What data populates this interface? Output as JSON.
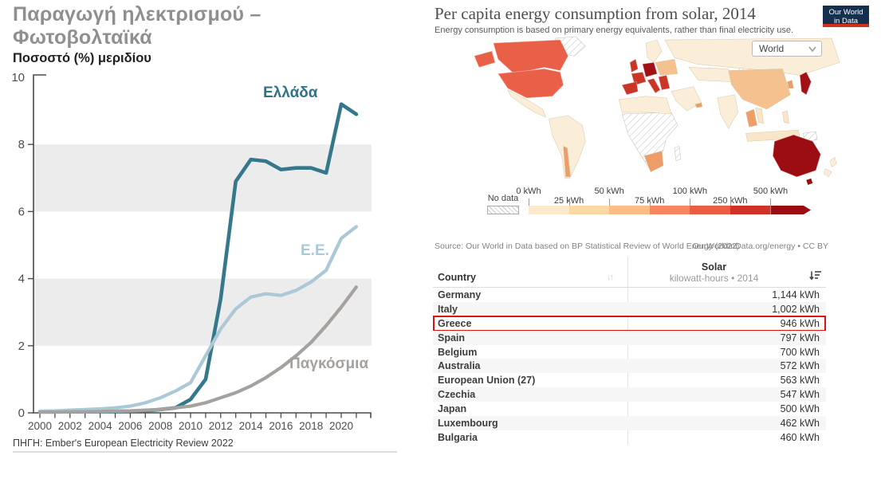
{
  "left_chart": {
    "title_line1": "Παραγωγή ηλεκτρισμού –",
    "title_line2": "Φωτοβολταϊκά",
    "subtitle": "Ποσοστό (%) μεριδίου",
    "source": "ΠΗΓΗ: Ember's European Electricity Review 2022",
    "band_color": "#ececec",
    "axis_color": "#4d4d4d"
  },
  "right_panel": {
    "title": "Per capita energy consumption from solar, 2014",
    "subtitle": "Energy consumption is based on primary energy equivalents, rather than final electricity use.",
    "logo": {
      "line1": "Our World",
      "line2": "in Data",
      "bg": "#15304e",
      "accent": "#d0311d"
    },
    "dropdown": {
      "value": "World"
    },
    "map_legend": {
      "no_data_label": "No data",
      "stops": [
        "0 kWh",
        "25 kWh",
        "50 kWh",
        "75 kWh",
        "100 kWh",
        "250 kWh",
        "500 kWh"
      ],
      "colors": [
        "#fdeacd",
        "#fdd8a7",
        "#fdbc84",
        "#f8875f",
        "#ea5c44",
        "#d03227",
        "#9c0d13"
      ]
    },
    "source_left": "Source: Our World in Data based on BP Statistical Review of World Energy (2022)",
    "source_right": "OurWorldInData.org/energy • CC BY",
    "table": {
      "col_country": "Country",
      "col_value_line1": "Solar",
      "col_value_line2": "kilowatt-hours • 2014",
      "rows": [
        {
          "country": "Germany",
          "value": "1,144 kWh",
          "highlight": false
        },
        {
          "country": "Italy",
          "value": "1,002 kWh",
          "highlight": false
        },
        {
          "country": "Greece",
          "value": "946 kWh",
          "highlight": true
        },
        {
          "country": "Spain",
          "value": "797 kWh",
          "highlight": false
        },
        {
          "country": "Belgium",
          "value": "700 kWh",
          "highlight": false
        },
        {
          "country": "Australia",
          "value": "572 kWh",
          "highlight": false
        },
        {
          "country": "European Union (27)",
          "value": "563 kWh",
          "highlight": false
        },
        {
          "country": "Czechia",
          "value": "547 kWh",
          "highlight": false
        },
        {
          "country": "Japan",
          "value": "500 kWh",
          "highlight": false
        },
        {
          "country": "Luxembourg",
          "value": "462 kWh",
          "highlight": false
        },
        {
          "country": "Bulgaria",
          "value": "460 kWh",
          "highlight": false
        }
      ]
    }
  },
  "chart_data": [
    {
      "type": "line",
      "title": "Παραγωγή ηλεκτρισμού – Φωτοβολταϊκά",
      "ylabel": "Ποσοστό (%) μεριδίου",
      "source": "ΠΗΓΗ: Ember's European Electricity Review 2022",
      "ylim": [
        0,
        10
      ],
      "yticks": [
        0,
        2,
        4,
        6,
        8,
        10
      ],
      "shaded_bands": [
        [
          2,
          4
        ],
        [
          6,
          8
        ]
      ],
      "xtick_labels": [
        2000,
        2002,
        2004,
        2006,
        2008,
        2010,
        2012,
        2014,
        2016,
        2018,
        2020
      ],
      "x": [
        2000,
        2001,
        2002,
        2003,
        2004,
        2005,
        2006,
        2007,
        2008,
        2009,
        2010,
        2011,
        2012,
        2013,
        2014,
        2015,
        2016,
        2017,
        2018,
        2019,
        2020,
        2021
      ],
      "series": [
        {
          "name": "Ελλάδα",
          "color": "#35788c",
          "values": [
            0.03,
            0.03,
            0.03,
            0.03,
            0.04,
            0.04,
            0.05,
            0.06,
            0.1,
            0.15,
            0.4,
            1.0,
            3.4,
            6.9,
            7.55,
            7.5,
            7.25,
            7.3,
            7.3,
            7.15,
            9.2,
            8.9
          ]
        },
        {
          "name": "Ε.Ε.",
          "color": "#abc8d6",
          "values": [
            0.05,
            0.06,
            0.08,
            0.1,
            0.12,
            0.15,
            0.2,
            0.3,
            0.45,
            0.65,
            0.9,
            1.7,
            2.5,
            3.1,
            3.45,
            3.55,
            3.5,
            3.65,
            3.9,
            4.25,
            5.2,
            5.55
          ]
        },
        {
          "name": "Παγκόσμια",
          "color": "#a5a19e",
          "values": [
            0.02,
            0.02,
            0.03,
            0.03,
            0.04,
            0.05,
            0.06,
            0.08,
            0.1,
            0.15,
            0.2,
            0.3,
            0.45,
            0.6,
            0.8,
            1.05,
            1.35,
            1.7,
            2.1,
            2.6,
            3.15,
            3.75
          ]
        }
      ]
    },
    {
      "type": "heatmap",
      "subtype": "world-choropleth",
      "title": "Per capita energy consumption from solar, 2014",
      "subtitle": "Energy consumption is based on primary energy equivalents, rather than final electricity use.",
      "legend_bins": [
        "0 kWh",
        "25 kWh",
        "50 kWh",
        "75 kWh",
        "100 kWh",
        "250 kWh",
        "500 kWh"
      ],
      "legend_colors": [
        "#fdeacd",
        "#fdd8a7",
        "#fdbc84",
        "#f8875f",
        "#ea5c44",
        "#d03227",
        "#9c0d13"
      ],
      "no_data": "No data (hatched): most of Africa, Greenland, Mongolia, parts of South America"
    },
    {
      "type": "table",
      "columns": [
        "Country",
        "Solar kilowatt-hours 2014"
      ],
      "rows": [
        [
          "Germany",
          1144
        ],
        [
          "Italy",
          1002
        ],
        [
          "Greece",
          946
        ],
        [
          "Spain",
          797
        ],
        [
          "Belgium",
          700
        ],
        [
          "Australia",
          572
        ],
        [
          "European Union (27)",
          563
        ],
        [
          "Czechia",
          547
        ],
        [
          "Japan",
          500
        ],
        [
          "Luxembourg",
          462
        ],
        [
          "Bulgaria",
          460
        ]
      ],
      "highlighted_row": "Greece"
    }
  ]
}
